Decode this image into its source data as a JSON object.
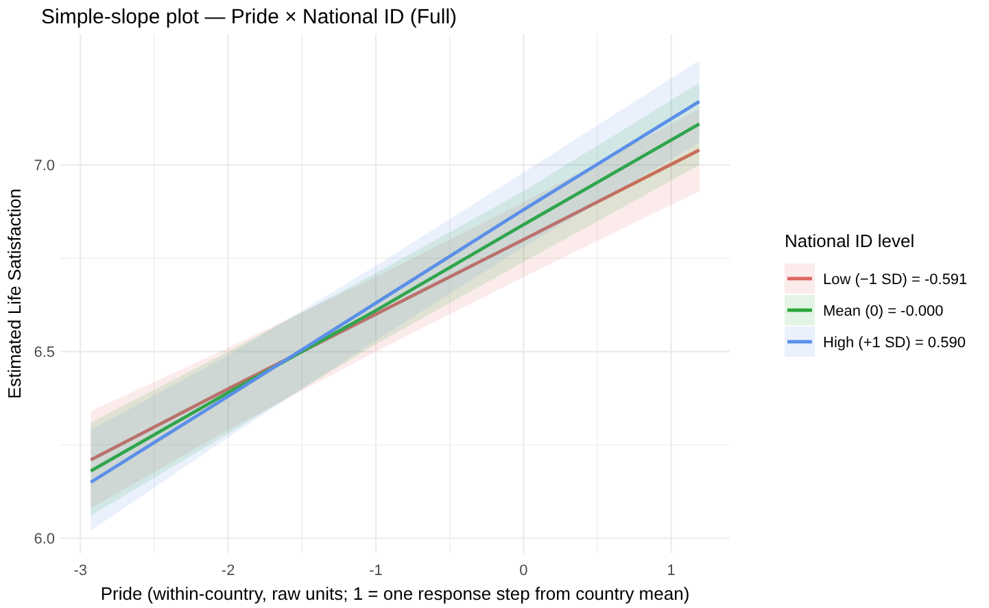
{
  "chart_data": {
    "type": "line",
    "title": "Simple-slope plot — Pride × National ID (Full)",
    "xlabel": "Pride (within-country, raw units; 1 = one response step from country mean)",
    "ylabel": "Estimated Life Satisfaction",
    "legend_title": "National ID level",
    "x": [
      -2.93,
      -2,
      -1,
      0,
      1.19
    ],
    "series": [
      {
        "name": "Low (−1 SD) = -0.591",
        "color": "#e06660",
        "values": [
          6.21,
          6.4,
          6.6,
          6.8,
          7.04
        ],
        "lower": [
          6.08,
          6.29,
          6.5,
          6.7,
          6.93
        ],
        "upper": [
          6.34,
          6.51,
          6.7,
          6.9,
          7.15
        ]
      },
      {
        "name": "Mean (0) = -0.000",
        "color": "#2aa836",
        "values": [
          6.18,
          6.39,
          6.61,
          6.84,
          7.11
        ],
        "lower": [
          6.06,
          6.28,
          6.52,
          6.74,
          7.0
        ],
        "upper": [
          6.31,
          6.5,
          6.71,
          6.93,
          7.22
        ]
      },
      {
        "name": "High (+1 SD) = 0.590",
        "color": "#5b8fe8",
        "values": [
          6.15,
          6.38,
          6.63,
          6.88,
          7.17
        ],
        "lower": [
          6.02,
          6.27,
          6.53,
          6.78,
          7.06
        ],
        "upper": [
          6.29,
          6.49,
          6.73,
          6.98,
          7.28
        ]
      }
    ],
    "xlim": [
      -3.136,
      1.396
    ],
    "ylim": [
      5.96,
      7.35
    ],
    "xticks": [
      -3,
      {
        "value": -2.5,
        "label": null
      },
      -2,
      {
        "value": -1.5,
        "label": null
      },
      -1,
      {
        "value": -0.5,
        "label": null
      },
      0,
      {
        "value": 0.5,
        "label": null
      },
      1
    ],
    "yticks": [
      {
        "value": 6,
        "label": "6.0"
      },
      {
        "value": 6.25,
        "label": null
      },
      {
        "value": 6.5,
        "label": "6.5"
      },
      {
        "value": 6.75,
        "label": null
      },
      {
        "value": 7,
        "label": "7.0"
      }
    ],
    "grid": true,
    "legend": "right",
    "line_style": "solid"
  }
}
